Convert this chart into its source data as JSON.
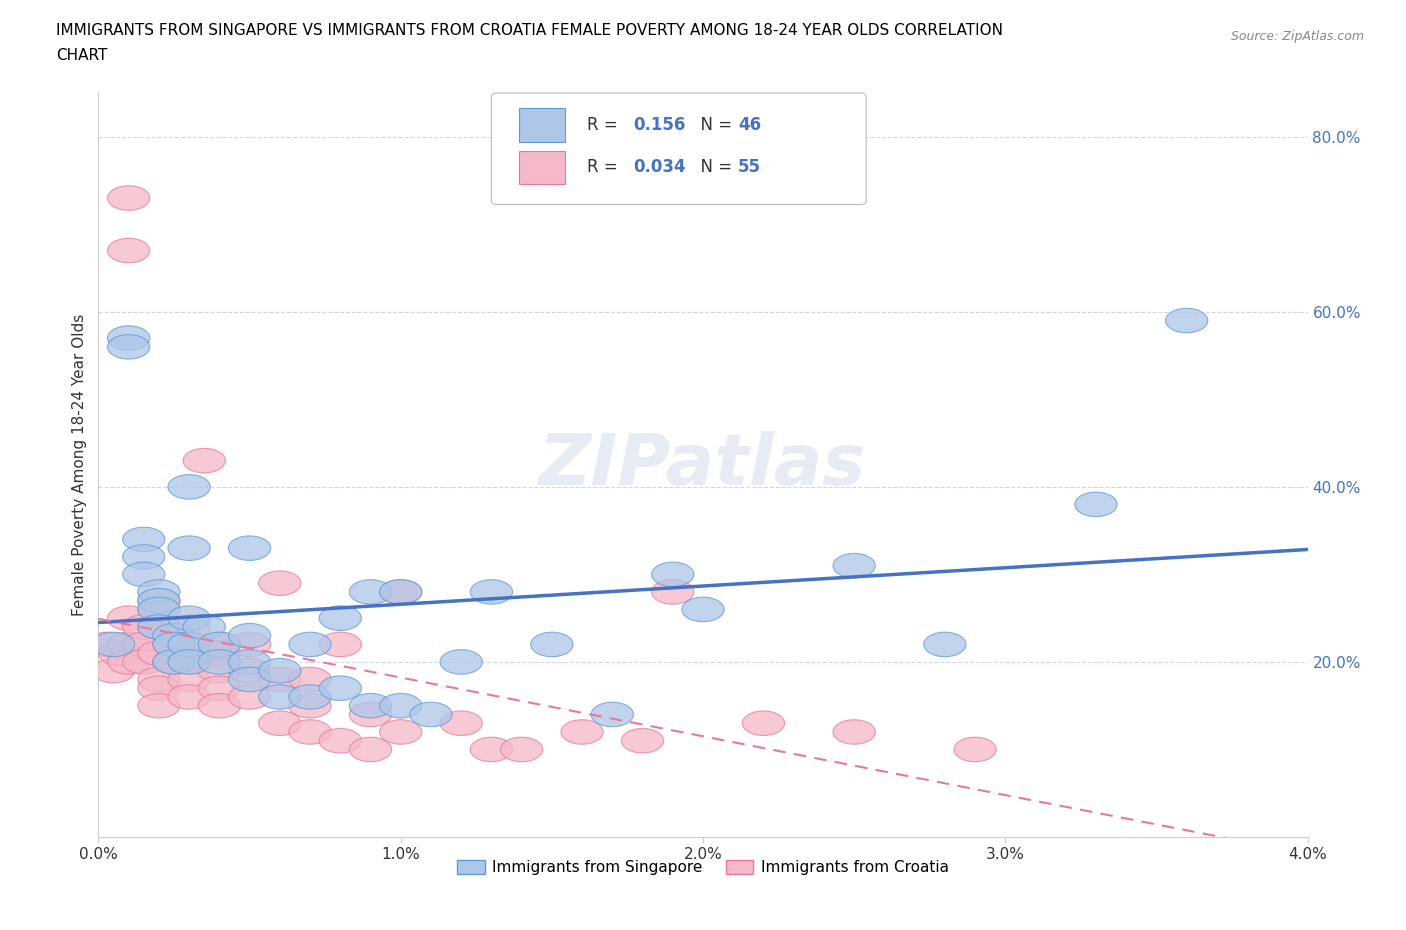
{
  "title_line1": "IMMIGRANTS FROM SINGAPORE VS IMMIGRANTS FROM CROATIA FEMALE POVERTY AMONG 18-24 YEAR OLDS CORRELATION",
  "title_line2": "CHART",
  "source": "Source: ZipAtlas.com",
  "ylabel": "Female Poverty Among 18-24 Year Olds",
  "xlim": [
    0.0,
    0.04
  ],
  "ylim": [
    0.0,
    0.85
  ],
  "xticks": [
    0.0,
    0.01,
    0.02,
    0.03,
    0.04
  ],
  "xticklabels": [
    "0.0%",
    "1.0%",
    "2.0%",
    "3.0%",
    "4.0%"
  ],
  "yticks_left": [],
  "yticks_right": [
    0.2,
    0.4,
    0.6,
    0.8
  ],
  "yticklabels_right": [
    "20.0%",
    "40.0%",
    "60.0%",
    "80.0%"
  ],
  "singapore_color": "#aec6e8",
  "croatia_color": "#f5b8c8",
  "singapore_edge_color": "#5b9bd5",
  "croatia_edge_color": "#e8789a",
  "singapore_line_color": "#4472c4",
  "croatia_line_color": "#e8789a",
  "R_singapore": 0.156,
  "N_singapore": 46,
  "R_croatia": 0.034,
  "N_croatia": 55,
  "watermark": "ZIPatlas",
  "legend_label_color": "#4472c4",
  "singapore_x": [
    0.0005,
    0.001,
    0.001,
    0.0015,
    0.0015,
    0.0015,
    0.002,
    0.002,
    0.002,
    0.002,
    0.0025,
    0.0025,
    0.0025,
    0.003,
    0.003,
    0.003,
    0.003,
    0.003,
    0.0035,
    0.004,
    0.004,
    0.005,
    0.005,
    0.005,
    0.005,
    0.006,
    0.006,
    0.007,
    0.007,
    0.008,
    0.008,
    0.009,
    0.009,
    0.01,
    0.01,
    0.011,
    0.012,
    0.013,
    0.015,
    0.017,
    0.019,
    0.02,
    0.025,
    0.028,
    0.033,
    0.036
  ],
  "singapore_y": [
    0.22,
    0.57,
    0.56,
    0.34,
    0.32,
    0.3,
    0.28,
    0.27,
    0.26,
    0.24,
    0.23,
    0.22,
    0.2,
    0.33,
    0.25,
    0.22,
    0.2,
    0.4,
    0.24,
    0.22,
    0.2,
    0.23,
    0.2,
    0.18,
    0.33,
    0.19,
    0.16,
    0.22,
    0.16,
    0.25,
    0.17,
    0.15,
    0.28,
    0.15,
    0.28,
    0.14,
    0.2,
    0.28,
    0.22,
    0.14,
    0.3,
    0.26,
    0.31,
    0.22,
    0.38,
    0.59
  ],
  "croatia_x": [
    0.0003,
    0.0005,
    0.0007,
    0.001,
    0.001,
    0.001,
    0.001,
    0.001,
    0.0015,
    0.0015,
    0.0015,
    0.002,
    0.002,
    0.002,
    0.002,
    0.002,
    0.002,
    0.002,
    0.0025,
    0.0025,
    0.003,
    0.003,
    0.003,
    0.003,
    0.003,
    0.0035,
    0.004,
    0.004,
    0.004,
    0.004,
    0.004,
    0.005,
    0.005,
    0.005,
    0.006,
    0.006,
    0.006,
    0.007,
    0.007,
    0.007,
    0.008,
    0.008,
    0.009,
    0.009,
    0.01,
    0.01,
    0.012,
    0.013,
    0.014,
    0.016,
    0.018,
    0.019,
    0.022,
    0.025,
    0.029
  ],
  "croatia_y": [
    0.22,
    0.19,
    0.21,
    0.73,
    0.67,
    0.25,
    0.22,
    0.2,
    0.24,
    0.22,
    0.2,
    0.27,
    0.26,
    0.24,
    0.21,
    0.18,
    0.17,
    0.15,
    0.22,
    0.2,
    0.24,
    0.22,
    0.2,
    0.18,
    0.16,
    0.43,
    0.22,
    0.21,
    0.19,
    0.17,
    0.15,
    0.22,
    0.19,
    0.16,
    0.29,
    0.18,
    0.13,
    0.18,
    0.15,
    0.12,
    0.22,
    0.11,
    0.14,
    0.1,
    0.28,
    0.12,
    0.13,
    0.1,
    0.1,
    0.12,
    0.11,
    0.28,
    0.13,
    0.12,
    0.1
  ],
  "background_color": "#ffffff",
  "grid_color": "#d0d8e8"
}
